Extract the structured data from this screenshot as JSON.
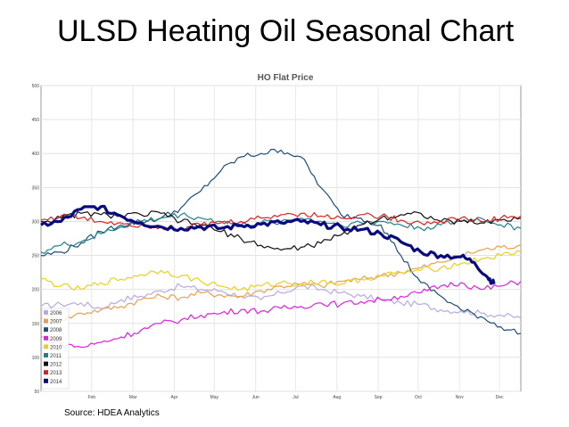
{
  "slide": {
    "title": "ULSD Heating Oil Seasonal Chart",
    "source": "Source: HDEA Analytics"
  },
  "chart_data": {
    "type": "line",
    "title": "HO Flat Price",
    "xlabel": "",
    "ylabel": "",
    "ylim": [
      50,
      500
    ],
    "yticks": [
      50,
      100,
      150,
      200,
      250,
      300,
      350,
      400,
      450,
      500
    ],
    "xlim": [
      0,
      360
    ],
    "xticks": [
      {
        "label": "Feb",
        "x": 38
      },
      {
        "label": "Mar",
        "x": 69
      },
      {
        "label": "Apr",
        "x": 100
      },
      {
        "label": "May",
        "x": 130
      },
      {
        "label": "Jun",
        "x": 161
      },
      {
        "label": "Jul",
        "x": 191
      },
      {
        "label": "Aug",
        "x": 222
      },
      {
        "label": "Sep",
        "x": 253
      },
      {
        "label": "Oct",
        "x": 283
      },
      {
        "label": "Nov",
        "x": 314
      },
      {
        "label": "Dec",
        "x": 344
      }
    ],
    "grid": true,
    "legend_position": "bottom-left",
    "series": [
      {
        "name": "2006",
        "color": "#b8a9e6",
        "width": 1.2,
        "x": [
          0,
          15,
          30,
          45,
          60,
          75,
          90,
          105,
          120,
          135,
          150,
          165,
          180,
          195,
          210,
          225,
          240,
          255,
          270,
          285,
          300,
          315,
          330,
          345,
          360
        ],
        "y": [
          175,
          178,
          180,
          172,
          185,
          190,
          198,
          205,
          200,
          198,
          190,
          185,
          195,
          205,
          200,
          195,
          190,
          185,
          180,
          178,
          170,
          168,
          165,
          162,
          158
        ]
      },
      {
        "name": "2007",
        "color": "#e8a050",
        "width": 1.2,
        "x": [
          0,
          15,
          30,
          45,
          60,
          75,
          90,
          105,
          120,
          135,
          150,
          165,
          180,
          195,
          210,
          225,
          240,
          255,
          270,
          285,
          300,
          315,
          330,
          345,
          360
        ],
        "y": [
          160,
          155,
          165,
          170,
          175,
          185,
          190,
          188,
          195,
          192,
          190,
          198,
          205,
          208,
          205,
          212,
          215,
          220,
          225,
          232,
          240,
          250,
          258,
          262,
          265
        ]
      },
      {
        "name": "2008",
        "color": "#1f4e79",
        "width": 1.2,
        "x": [
          0,
          15,
          30,
          45,
          60,
          75,
          90,
          105,
          120,
          135,
          150,
          165,
          180,
          195,
          210,
          225,
          240,
          255,
          270,
          285,
          300,
          315,
          330,
          345,
          360
        ],
        "y": [
          250,
          255,
          268,
          285,
          295,
          300,
          305,
          320,
          345,
          375,
          395,
          400,
          405,
          395,
          350,
          310,
          305,
          295,
          250,
          210,
          190,
          170,
          160,
          145,
          135
        ]
      },
      {
        "name": "2009",
        "color": "#e020e0",
        "width": 1.2,
        "x": [
          0,
          15,
          30,
          45,
          60,
          75,
          90,
          105,
          120,
          135,
          150,
          165,
          180,
          195,
          210,
          225,
          240,
          255,
          270,
          285,
          300,
          315,
          330,
          345,
          360
        ],
        "y": [
          130,
          120,
          115,
          122,
          130,
          140,
          150,
          155,
          162,
          165,
          170,
          168,
          172,
          175,
          180,
          178,
          182,
          185,
          190,
          195,
          205,
          210,
          200,
          205,
          212
        ]
      },
      {
        "name": "2010",
        "color": "#e8d020",
        "width": 1.2,
        "x": [
          0,
          15,
          30,
          45,
          60,
          75,
          90,
          105,
          120,
          135,
          150,
          165,
          180,
          195,
          210,
          225,
          240,
          255,
          270,
          285,
          300,
          315,
          330,
          345,
          360
        ],
        "y": [
          215,
          205,
          200,
          210,
          215,
          222,
          228,
          220,
          212,
          205,
          200,
          205,
          210,
          208,
          212,
          208,
          215,
          220,
          225,
          228,
          232,
          238,
          245,
          250,
          255
        ]
      },
      {
        "name": "2011",
        "color": "#20808a",
        "width": 1.2,
        "x": [
          0,
          15,
          30,
          45,
          60,
          75,
          90,
          105,
          120,
          135,
          150,
          165,
          180,
          195,
          210,
          225,
          240,
          255,
          270,
          285,
          300,
          315,
          330,
          345,
          360
        ],
        "y": [
          255,
          265,
          270,
          282,
          292,
          300,
          305,
          310,
          305,
          300,
          295,
          298,
          300,
          305,
          300,
          295,
          298,
          300,
          295,
          290,
          295,
          300,
          305,
          295,
          290
        ]
      },
      {
        "name": "2012",
        "color": "#111111",
        "width": 1.2,
        "x": [
          0,
          15,
          30,
          45,
          60,
          75,
          90,
          105,
          120,
          135,
          150,
          165,
          180,
          195,
          210,
          225,
          240,
          255,
          270,
          285,
          300,
          315,
          330,
          345,
          360
        ],
        "y": [
          300,
          305,
          312,
          310,
          308,
          310,
          312,
          300,
          295,
          285,
          275,
          265,
          258,
          262,
          268,
          280,
          295,
          305,
          310,
          312,
          300,
          300,
          298,
          302,
          305
        ]
      },
      {
        "name": "2013",
        "color": "#e02020",
        "width": 1.2,
        "x": [
          0,
          15,
          30,
          45,
          60,
          75,
          90,
          105,
          120,
          135,
          150,
          165,
          180,
          195,
          210,
          225,
          240,
          255,
          270,
          285,
          300,
          315,
          330,
          345,
          360
        ],
        "y": [
          302,
          308,
          305,
          300,
          298,
          295,
          292,
          290,
          295,
          298,
          300,
          305,
          310,
          312,
          308,
          305,
          310,
          308,
          302,
          298,
          300,
          305,
          300,
          305,
          308
        ]
      },
      {
        "name": "2014",
        "color": "#0a0a80",
        "width": 3.2,
        "x": [
          0,
          15,
          30,
          45,
          60,
          75,
          90,
          105,
          120,
          135,
          150,
          165,
          180,
          195,
          210,
          225,
          240,
          255,
          270,
          285,
          300,
          315,
          325,
          335,
          340
        ],
        "y": [
          295,
          300,
          318,
          322,
          308,
          298,
          292,
          290,
          292,
          290,
          294,
          296,
          298,
          300,
          295,
          292,
          288,
          282,
          270,
          255,
          250,
          248,
          240,
          218,
          208
        ]
      }
    ]
  }
}
